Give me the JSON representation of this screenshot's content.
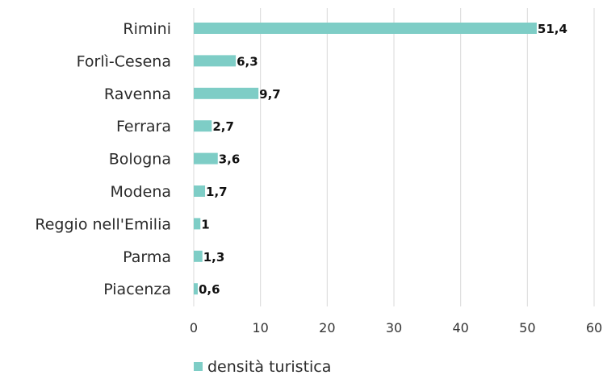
{
  "chart_data": {
    "type": "bar",
    "orientation": "horizontal",
    "categories": [
      "Rimini",
      "Forlì-Cesena",
      "Ravenna",
      "Ferrara",
      "Bologna",
      "Modena",
      "Reggio nell'Emilia",
      "Parma",
      "Piacenza"
    ],
    "series": [
      {
        "name": "densità turistica",
        "values": [
          51.4,
          6.3,
          9.7,
          2.7,
          3.6,
          1.7,
          1,
          1.3,
          0.6
        ],
        "labels": [
          "51,4",
          "6,3",
          "9,7",
          "2,7",
          "3,6",
          "1,7",
          "1",
          "1,3",
          "0,6"
        ],
        "color": "#7ecdc6"
      }
    ],
    "title": "",
    "xlabel": "",
    "ylabel": "",
    "xlim": [
      0,
      60
    ],
    "xticks": [
      0,
      10,
      20,
      30,
      40,
      50,
      60
    ],
    "xtick_labels": [
      "0",
      "10",
      "20",
      "30",
      "40",
      "50",
      "60"
    ],
    "grid": true,
    "legend": {
      "position": "bottom-left",
      "entries": [
        "densità turistica"
      ]
    }
  }
}
